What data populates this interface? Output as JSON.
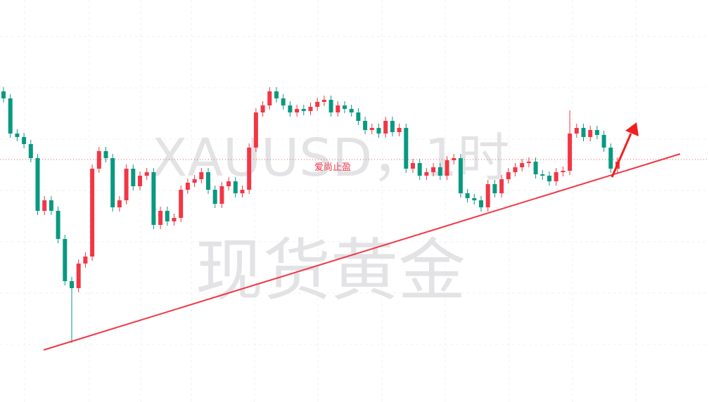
{
  "chart_data": {
    "type": "candlestick",
    "title": "XAUUSD，1时",
    "subtitle": "现货黄金",
    "annotation": "爱尚止盈",
    "ylim": [
      0,
      572
    ],
    "up_color": "#f23645",
    "down_color": "#089981",
    "open": [
      442,
      432,
      382,
      377,
      367,
      347,
      272,
      287,
      272,
      232,
      172,
      162,
      197,
      207,
      332,
      357,
      347,
      277,
      287,
      332,
      307,
      322,
      327,
      252,
      272,
      257,
      262,
      302,
      312,
      317,
      327,
      302,
      282,
      307,
      314,
      297,
      302,
      362,
      412,
      422,
      442,
      432,
      422,
      412,
      417,
      414,
      420,
      427,
      430,
      412,
      422,
      417,
      412,
      400,
      387,
      390,
      382,
      400,
      384,
      390,
      332,
      340,
      322,
      327,
      334,
      322,
      344,
      347,
      297,
      290,
      287,
      277,
      310,
      297,
      317,
      327,
      334,
      340,
      342,
      324,
      322,
      314,
      327,
      329,
      382,
      390,
      377,
      387,
      380,
      362,
      332
    ],
    "high": [
      448,
      438,
      388,
      383,
      373,
      353,
      293,
      293,
      278,
      238,
      178,
      203,
      213,
      338,
      363,
      363,
      353,
      293,
      338,
      338,
      328,
      333,
      333,
      278,
      278,
      268,
      308,
      318,
      323,
      333,
      333,
      308,
      313,
      320,
      320,
      308,
      368,
      418,
      428,
      448,
      448,
      438,
      428,
      423,
      423,
      426,
      433,
      436,
      436,
      428,
      428,
      423,
      418,
      406,
      396,
      396,
      406,
      406,
      396,
      396,
      346,
      346,
      333,
      340,
      340,
      350,
      353,
      353,
      303,
      296,
      293,
      316,
      316,
      323,
      333,
      340,
      346,
      348,
      348,
      330,
      328,
      333,
      335,
      415,
      396,
      396,
      393,
      393,
      386,
      368,
      348
    ],
    "low": [
      426,
      376,
      371,
      361,
      341,
      266,
      266,
      266,
      226,
      166,
      84,
      156,
      191,
      201,
      326,
      341,
      271,
      271,
      281,
      301,
      301,
      316,
      246,
      246,
      251,
      251,
      256,
      296,
      306,
      311,
      296,
      276,
      276,
      301,
      291,
      291,
      296,
      356,
      406,
      416,
      426,
      416,
      406,
      406,
      408,
      408,
      414,
      421,
      406,
      406,
      411,
      406,
      394,
      381,
      381,
      376,
      376,
      378,
      378,
      326,
      326,
      316,
      316,
      321,
      316,
      316,
      338,
      291,
      284,
      281,
      271,
      271,
      291,
      291,
      311,
      321,
      328,
      334,
      318,
      316,
      308,
      308,
      321,
      323,
      376,
      371,
      371,
      374,
      356,
      326,
      326
    ],
    "close": [
      432,
      382,
      377,
      367,
      347,
      272,
      287,
      272,
      232,
      172,
      162,
      197,
      207,
      332,
      357,
      347,
      277,
      287,
      332,
      307,
      322,
      327,
      252,
      272,
      257,
      262,
      302,
      312,
      317,
      327,
      302,
      282,
      307,
      314,
      297,
      302,
      362,
      412,
      422,
      442,
      432,
      422,
      412,
      417,
      414,
      420,
      427,
      430,
      412,
      422,
      417,
      412,
      400,
      387,
      390,
      382,
      400,
      384,
      390,
      332,
      340,
      322,
      327,
      334,
      322,
      344,
      347,
      297,
      290,
      287,
      277,
      310,
      297,
      317,
      327,
      334,
      340,
      342,
      324,
      322,
      314,
      327,
      329,
      382,
      390,
      377,
      387,
      380,
      362,
      332,
      342
    ]
  }
}
